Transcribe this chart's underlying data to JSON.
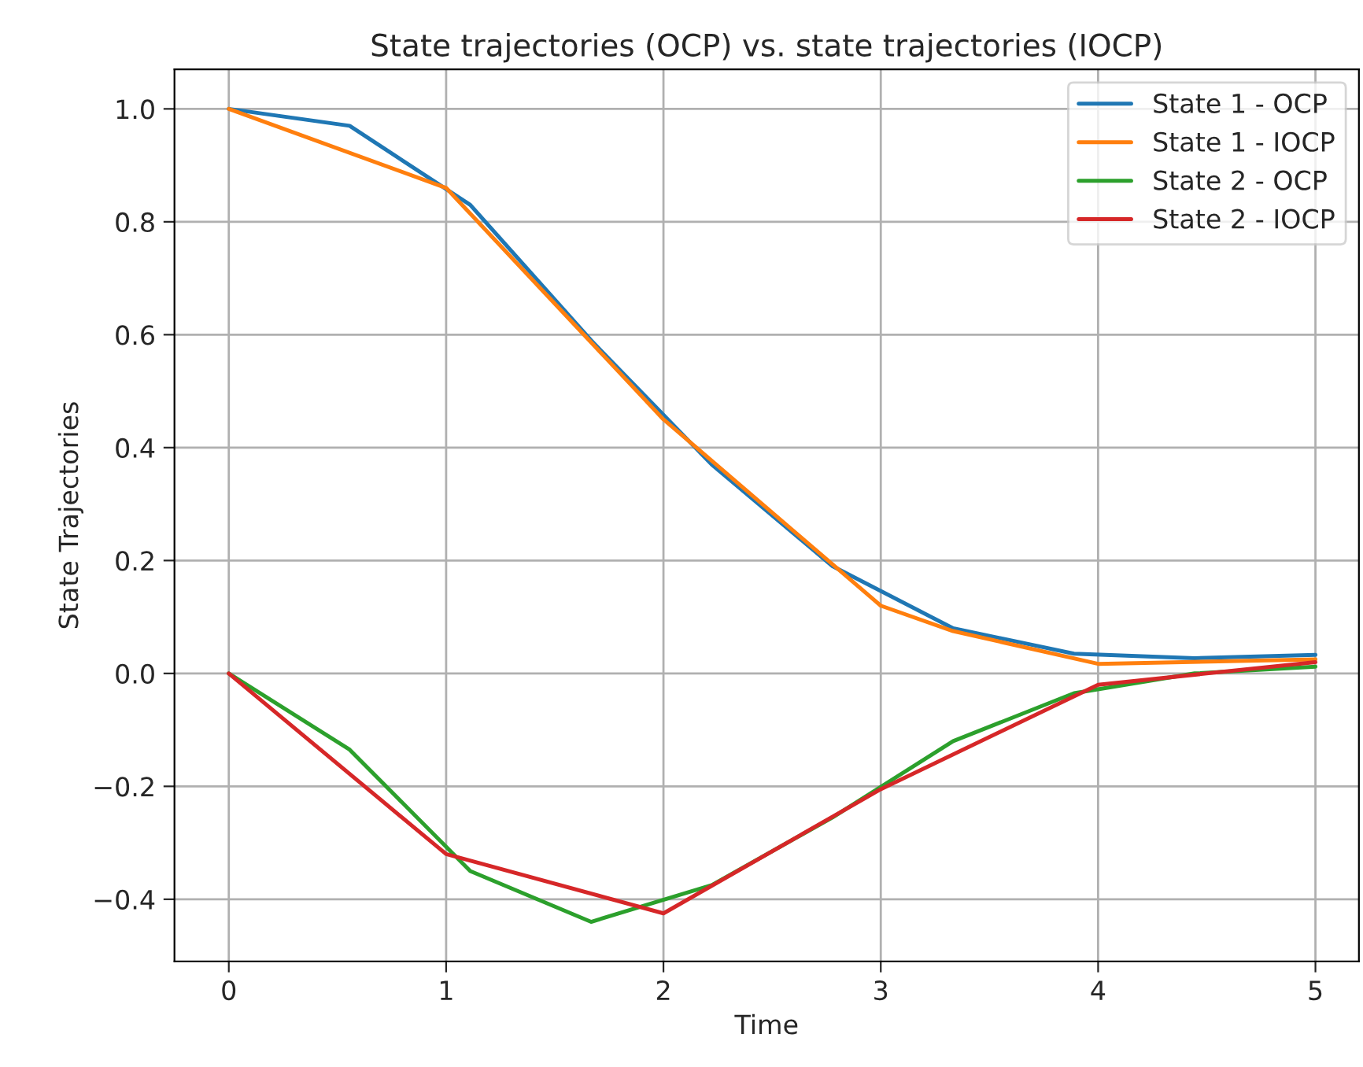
{
  "chart_data": {
    "type": "line",
    "title": "State trajectories (OCP) vs. state trajectories (IOCP)",
    "xlabel": "Time",
    "ylabel": "State Trajectories",
    "xlim": [
      -0.25,
      5.2
    ],
    "xticks": [
      0,
      1,
      2,
      3,
      4,
      5
    ],
    "ylim": [
      -0.51,
      1.07
    ],
    "yticks": [
      {
        "value": -0.4,
        "label": "−0.4"
      },
      {
        "value": -0.2,
        "label": "−0.2"
      },
      {
        "value": 0,
        "label": "0.0"
      },
      {
        "value": 0.2,
        "label": "0.2"
      },
      {
        "value": 0.4,
        "label": "0.4"
      },
      {
        "value": 0.6,
        "label": "0.6"
      },
      {
        "value": 0.8,
        "label": "0.8"
      },
      {
        "value": 1.0,
        "label": "1.0"
      }
    ],
    "grid": true,
    "legend": "top right",
    "marker": "none",
    "line_style": "solid",
    "series": [
      {
        "name": "State 1 - OCP",
        "color": "#1f77b4",
        "x": [
          0,
          0.556,
          1.111,
          1.667,
          2.222,
          2.778,
          3.333,
          3.889,
          4.444,
          5
        ],
        "values": [
          1.0,
          0.97,
          0.83,
          0.59,
          0.37,
          0.19,
          0.08,
          0.035,
          0.027,
          0.033
        ]
      },
      {
        "name": "State 1 - IOCP",
        "color": "#ff7f0e",
        "x": [
          0,
          1,
          2,
          3,
          3.333,
          4,
          5
        ],
        "values": [
          1.0,
          0.86,
          0.45,
          0.12,
          0.075,
          0.017,
          0.025
        ]
      },
      {
        "name": "State 2 - OCP",
        "color": "#2ca02c",
        "x": [
          0,
          0.556,
          1.111,
          1.667,
          2.222,
          2.778,
          3.333,
          3.889,
          4.444,
          5
        ],
        "values": [
          0.0,
          -0.135,
          -0.35,
          -0.44,
          -0.375,
          -0.255,
          -0.12,
          -0.035,
          0.0,
          0.012
        ]
      },
      {
        "name": "State 2 - IOCP",
        "color": "#d62728",
        "x": [
          0,
          1,
          2,
          3,
          4,
          5
        ],
        "values": [
          0.0,
          -0.32,
          -0.425,
          -0.205,
          -0.02,
          0.02
        ]
      }
    ]
  }
}
